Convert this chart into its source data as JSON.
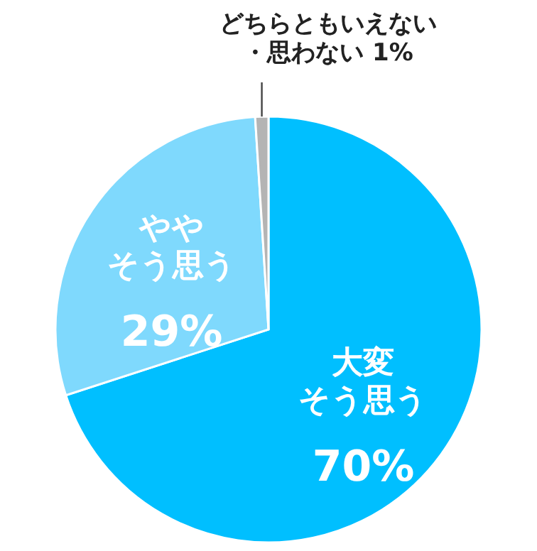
{
  "chart_data": {
    "type": "pie",
    "categories": [
      "大変そう思う",
      "ややそう思う",
      "どちらともいえない・思わない"
    ],
    "values": [
      70,
      29,
      1
    ],
    "colors": [
      "#00bfff",
      "#7fd9fd",
      "#b4b4b4"
    ],
    "value_labels": [
      "70%",
      "29%",
      "1%"
    ],
    "legend": false
  }
}
